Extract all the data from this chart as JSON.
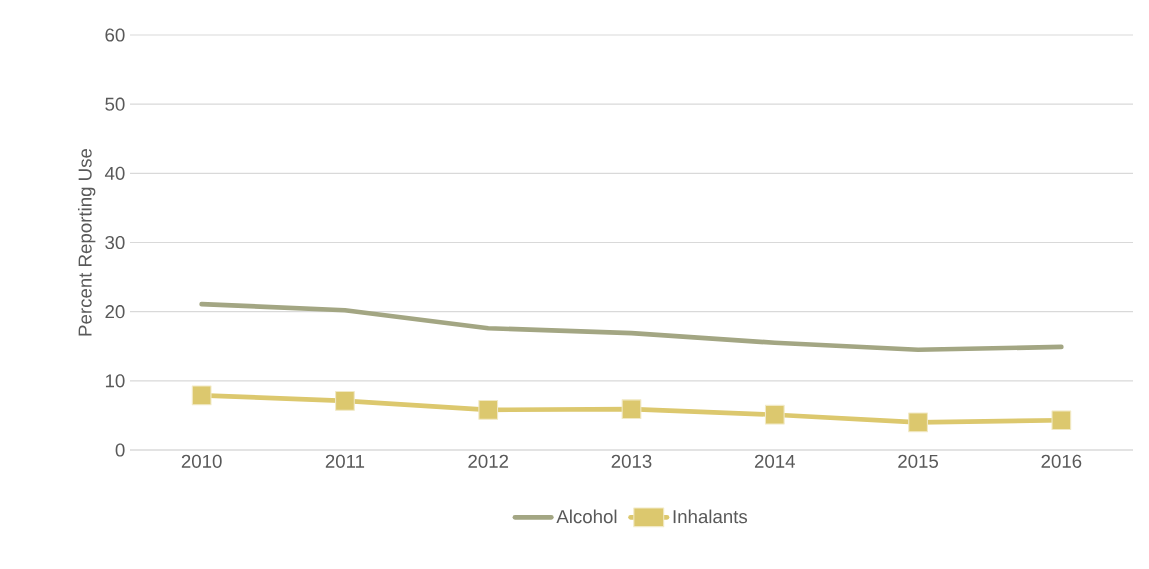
{
  "chart_data": {
    "type": "line",
    "ylabel": "Percent Reporting Use",
    "categories": [
      "2010",
      "2011",
      "2012",
      "2013",
      "2014",
      "2015",
      "2016"
    ],
    "series": [
      {
        "name": "Alcohol",
        "color": "#a3a683",
        "marker": "none",
        "values": [
          21.1,
          20.2,
          17.6,
          16.9,
          15.5,
          14.5,
          14.9
        ]
      },
      {
        "name": "Inhalants",
        "color": "#dcc86e",
        "marker": "square",
        "values": [
          7.9,
          7.1,
          5.8,
          5.9,
          5.1,
          4.0,
          4.3
        ]
      }
    ],
    "ylim": [
      0,
      60
    ],
    "yticks": [
      0,
      10,
      20,
      30,
      40,
      50,
      60
    ],
    "grid": "y",
    "legend": "bottom"
  }
}
